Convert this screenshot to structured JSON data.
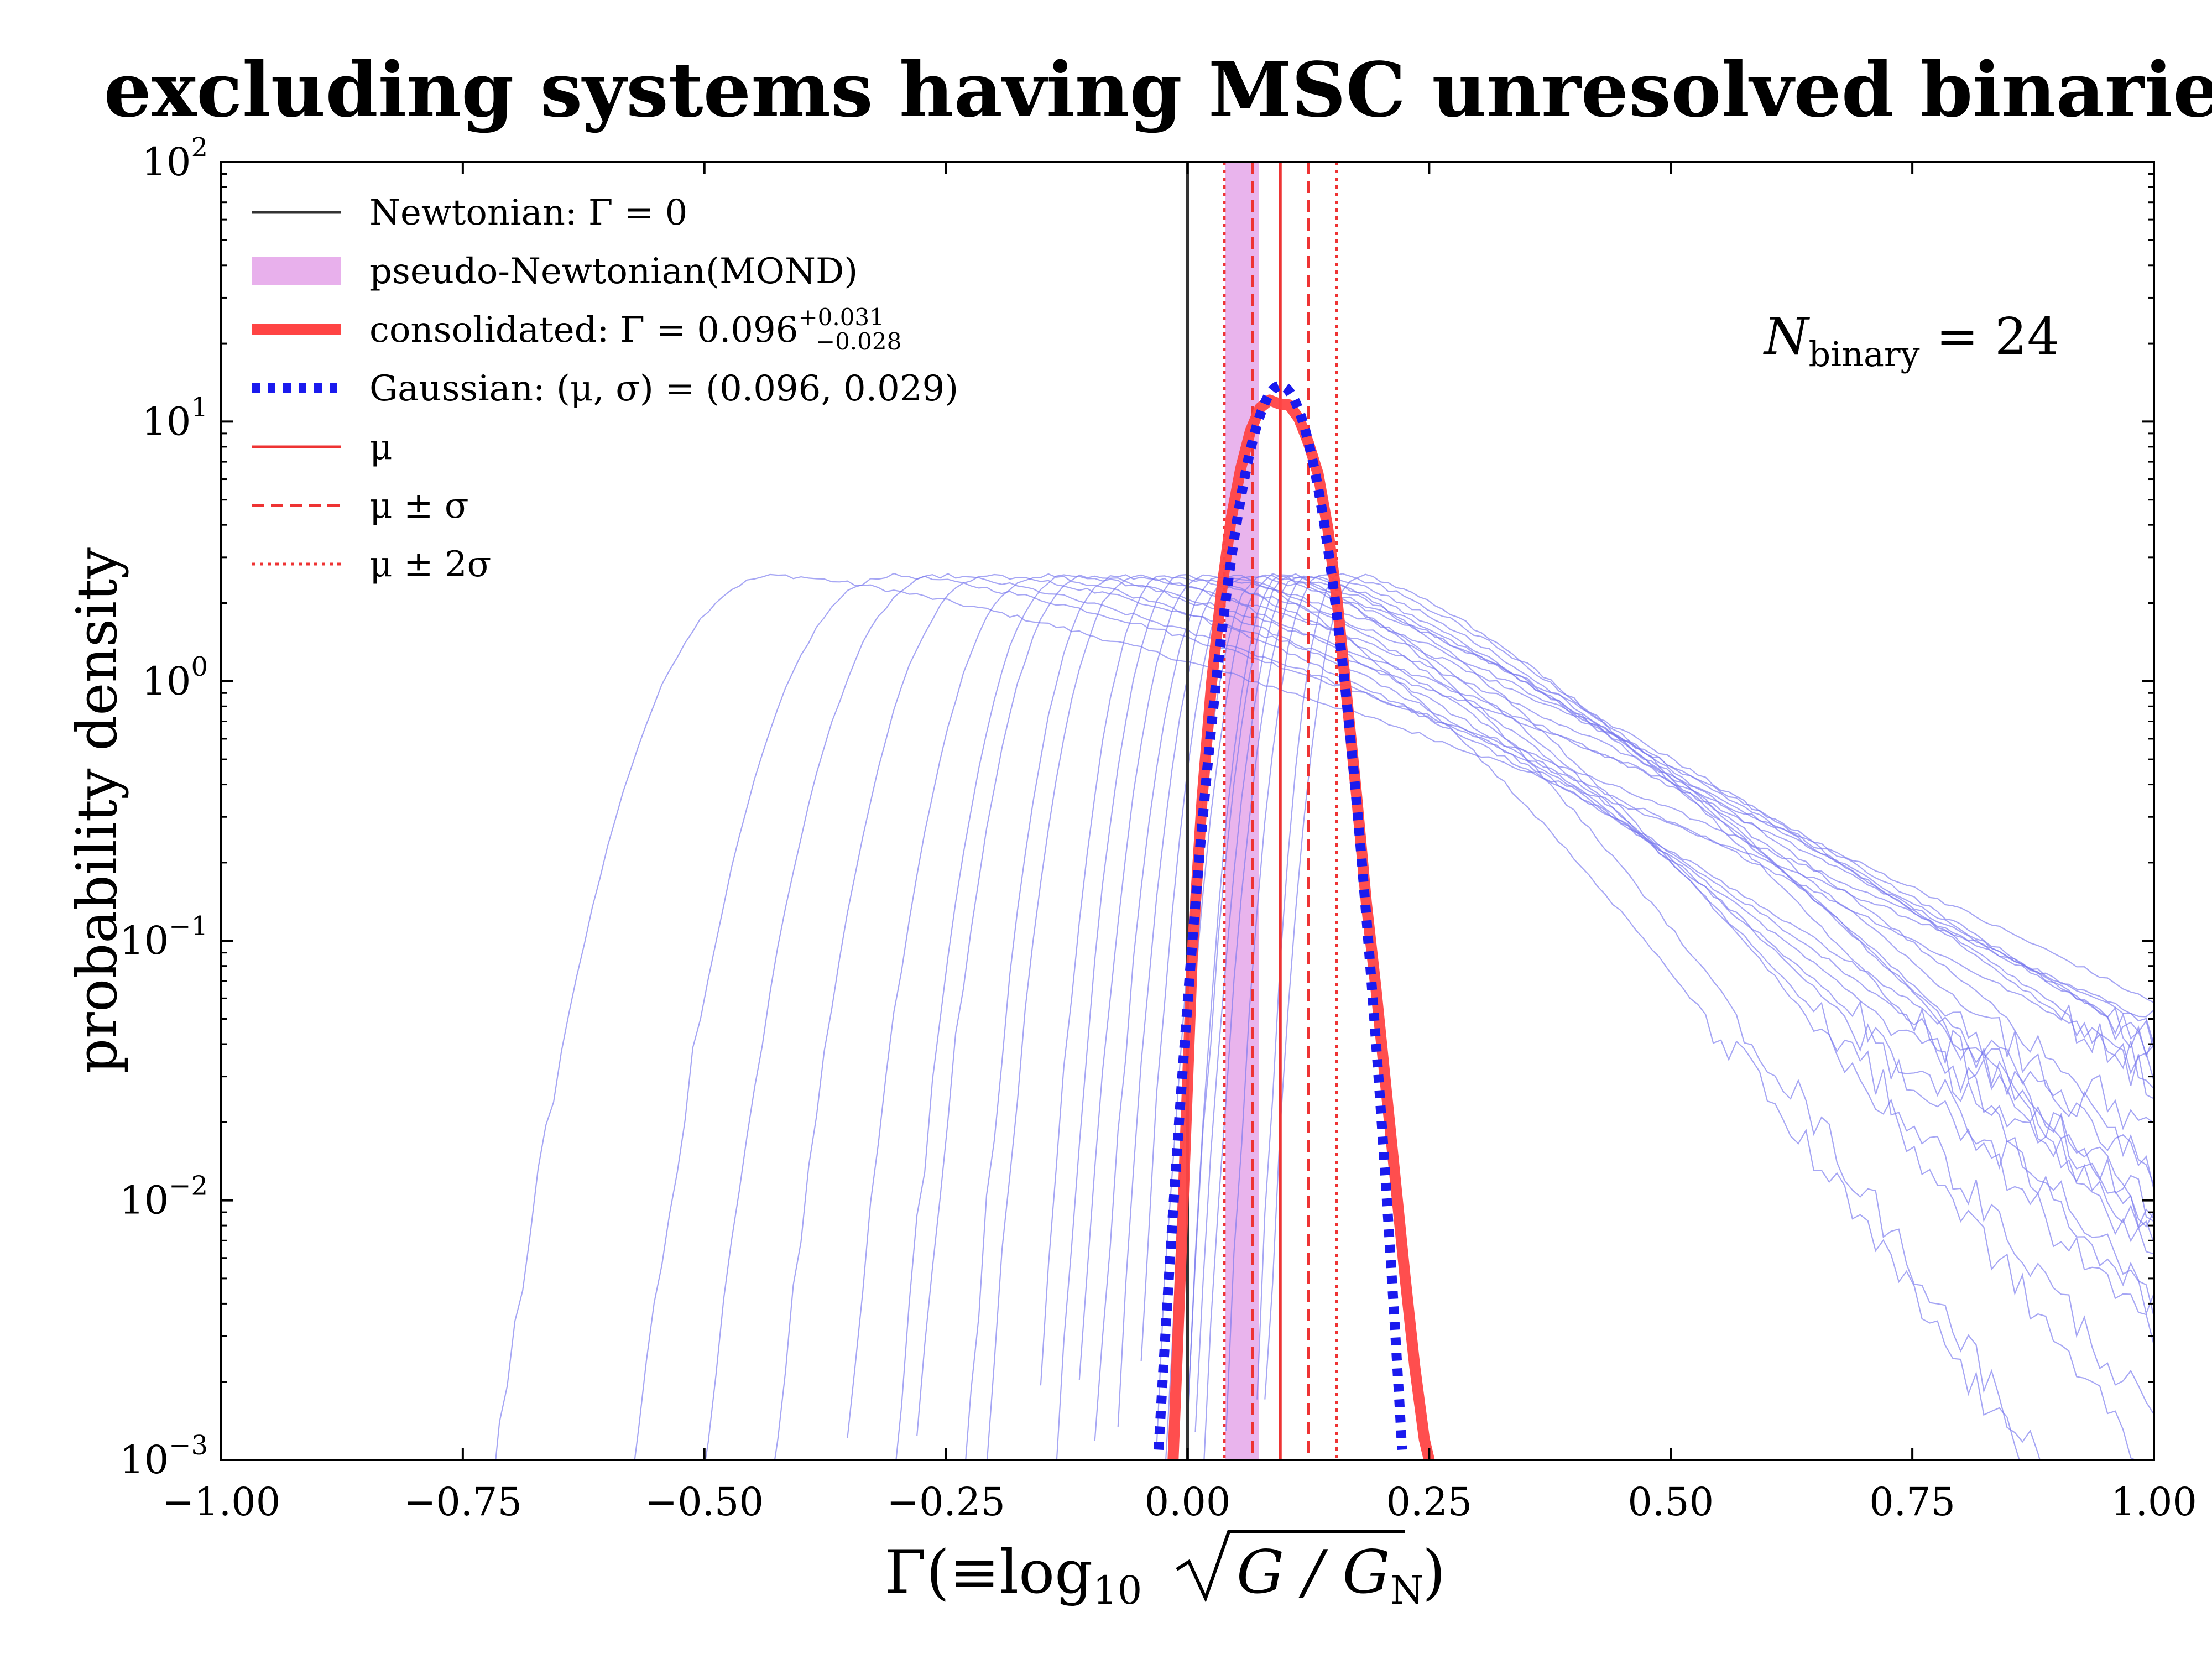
{
  "chart_data": {
    "type": "line",
    "title": "excluding systems having MSC unresolved binaries",
    "xlabel": "Γ(≡log10 √(G / G_N))",
    "xlabel_parts": {
      "main": "Γ(≡log",
      "sub": "10",
      "rad": "G / G",
      "radsub": "N",
      "close": ")"
    },
    "ylabel": "probability density",
    "xlim": [
      -1.0,
      1.0
    ],
    "ylim": [
      0.001,
      100
    ],
    "yscale": "log",
    "x_ticks": [
      -1.0,
      -0.75,
      -0.5,
      -0.25,
      0.0,
      0.25,
      0.5,
      0.75,
      1.0
    ],
    "x_tick_labels": [
      "−1.00",
      "−0.75",
      "−0.50",
      "−0.25",
      "0.00",
      "0.25",
      "0.50",
      "0.75",
      "1.00"
    ],
    "y_ticks": [
      0.001,
      0.01,
      0.1,
      1,
      10,
      100
    ],
    "y_tick_labels": [
      {
        "base": "10",
        "exp": "−3"
      },
      {
        "base": "10",
        "exp": "−2"
      },
      {
        "base": "10",
        "exp": "−1"
      },
      {
        "base": "10",
        "exp": "0"
      },
      {
        "base": "10",
        "exp": "1"
      },
      {
        "base": "10",
        "exp": "2"
      }
    ],
    "annotation": {
      "text": "N_binary = 24",
      "main": "N",
      "sub": "binary",
      "rest": " = 24"
    },
    "legend": {
      "position": "upper-left",
      "entries": [
        {
          "label": "Newtonian: Γ = 0",
          "style": "solid-dark"
        },
        {
          "label": "pseudo-Newtonian(MOND)",
          "style": "band"
        },
        {
          "label": "consolidated: Γ = 0.096",
          "sup": "+0.031",
          "sub": "−0.028",
          "style": "thick-red"
        },
        {
          "label": "Gaussian: (μ, σ) = (0.096, 0.029)",
          "style": "dotted-blue"
        },
        {
          "label": "μ",
          "style": "solid-red"
        },
        {
          "label": "μ ± σ",
          "style": "dashed-red"
        },
        {
          "label": "μ ± 2σ",
          "style": "dotted-red"
        }
      ]
    },
    "newtonian_x": 0.0,
    "mond_band": [
      0.039,
      0.074
    ],
    "mu": 0.096,
    "sigma": 0.029,
    "consolidated": {
      "name": "consolidated",
      "x": [
        -0.015,
        -0.005,
        0.005,
        0.015,
        0.025,
        0.035,
        0.045,
        0.055,
        0.065,
        0.075,
        0.085,
        0.095,
        0.105,
        0.115,
        0.125,
        0.135,
        0.145,
        0.155,
        0.165,
        0.175,
        0.185,
        0.195,
        0.205,
        0.215,
        0.225,
        0.235,
        0.245,
        0.25
      ],
      "y": [
        0.001,
        0.009,
        0.09,
        0.35,
        1.0,
        2.2,
        4.2,
        6.6,
        9.2,
        11.3,
        12.1,
        11.7,
        11.6,
        10.3,
        8.3,
        6.3,
        3.9,
        2.0,
        0.85,
        0.36,
        0.14,
        0.065,
        0.028,
        0.012,
        0.0051,
        0.0023,
        0.0012,
        0.001
      ]
    },
    "gaussian": {
      "name": "Gaussian",
      "mu": 0.096,
      "sigma": 0.029,
      "x_range": [
        -0.03,
        0.222
      ]
    },
    "posteriors": {
      "description": "24 individual binary posteriors",
      "count": 24,
      "series": [
        {
          "peak": -0.42,
          "width_left": 0.13,
          "width_right": 0.55
        },
        {
          "peak": -0.3,
          "width_left": 0.12,
          "width_right": 0.5
        },
        {
          "peak": -0.25,
          "width_left": 0.11,
          "width_right": 0.45
        },
        {
          "peak": -0.2,
          "width_left": 0.1,
          "width_right": 0.48
        },
        {
          "peak": -0.12,
          "width_left": 0.08,
          "width_right": 0.42
        },
        {
          "peak": -0.07,
          "width_left": 0.07,
          "width_right": 0.4
        },
        {
          "peak": -0.02,
          "width_left": 0.06,
          "width_right": 0.38
        },
        {
          "peak": 0.02,
          "width_left": 0.06,
          "width_right": 0.35
        },
        {
          "peak": 0.06,
          "width_left": 0.05,
          "width_right": 0.33
        },
        {
          "peak": 0.08,
          "width_left": 0.05,
          "width_right": 0.3
        },
        {
          "peak": 0.1,
          "width_left": 0.045,
          "width_right": 0.28
        },
        {
          "peak": 0.12,
          "width_left": 0.05,
          "width_right": 0.26
        },
        {
          "peak": 0.14,
          "width_left": 0.045,
          "width_right": 0.25
        },
        {
          "peak": 0.16,
          "width_left": 0.04,
          "width_right": 0.24
        },
        {
          "peak": 0.18,
          "width_left": 0.045,
          "width_right": 0.22
        },
        {
          "peak": -0.05,
          "width_left": 0.07,
          "width_right": 0.3
        },
        {
          "peak": 0.0,
          "width_left": 0.06,
          "width_right": 0.27
        },
        {
          "peak": 0.04,
          "width_left": 0.06,
          "width_right": 0.25
        },
        {
          "peak": 0.09,
          "width_left": 0.05,
          "width_right": 0.22
        },
        {
          "peak": 0.13,
          "width_left": 0.05,
          "width_right": 0.2
        },
        {
          "peak": -0.15,
          "width_left": 0.09,
          "width_right": 0.36
        },
        {
          "peak": -0.1,
          "width_left": 0.08,
          "width_right": 0.33
        },
        {
          "peak": 0.05,
          "width_left": 0.055,
          "width_right": 0.19
        },
        {
          "peak": 0.11,
          "width_left": 0.05,
          "width_right": 0.18
        }
      ]
    },
    "colors": {
      "newtonian": "#333333",
      "mond_band": "#e8b0ec",
      "consolidated": "#ff4444",
      "gaussian": "#1a1aee",
      "mu_lines": "#ee3333",
      "posteriors": "#7777ee"
    }
  }
}
